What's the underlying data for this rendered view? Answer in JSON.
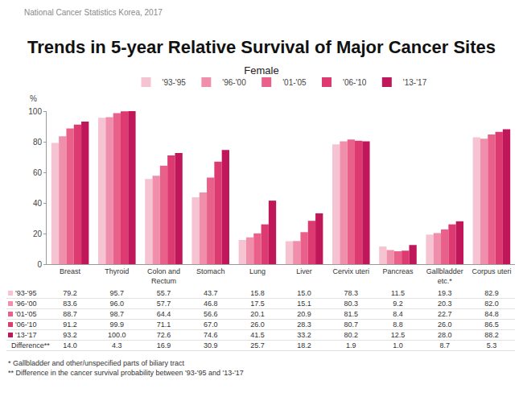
{
  "chart_data": {
    "type": "bar",
    "header": "National Cancer Statistics  Korea, 2017",
    "title": "Trends in 5-year Relative Survival of Major Cancer Sites",
    "subtitle": "Female",
    "y_label": "%",
    "categories": [
      "Breast",
      "Thyroid",
      "Colon and Rectum",
      "Stomach",
      "Lung",
      "Liver",
      "Cervix uteri",
      "Pancreas",
      "Gallbladder etc.*",
      "Corpus uteri"
    ],
    "series": [
      {
        "name": "'93-'95",
        "color": "#f6c3d2",
        "values": [
          79.2,
          95.7,
          55.7,
          43.7,
          15.8,
          15.0,
          78.3,
          11.5,
          19.3,
          82.9
        ],
        "value_labels": [
          "79.2",
          "95.7",
          "55.7",
          "43.7",
          "15.8",
          "15.0",
          "78.3",
          "11.5",
          "19.3",
          "82.9"
        ]
      },
      {
        "name": "'96-'00",
        "color": "#f08fac",
        "values": [
          83.6,
          96.0,
          57.7,
          46.8,
          17.5,
          15.1,
          80.3,
          9.2,
          20.3,
          82.0
        ],
        "value_labels": [
          "83.6",
          "96.0",
          "57.7",
          "46.8",
          "17.5",
          "15.1",
          "80.3",
          "9.2",
          "20.3",
          "82.0"
        ]
      },
      {
        "name": "'01-'05",
        "color": "#e9608a",
        "values": [
          88.7,
          98.7,
          64.4,
          56.6,
          20.1,
          20.9,
          81.5,
          8.4,
          22.7,
          84.8
        ],
        "value_labels": [
          "88.7",
          "98.7",
          "64.4",
          "56.6",
          "20.1",
          "20.9",
          "81.5",
          "8.4",
          "22.7",
          "84.8"
        ]
      },
      {
        "name": "'06-'10",
        "color": "#dc3a71",
        "values": [
          91.2,
          99.9,
          71.1,
          67.0,
          26.0,
          28.3,
          80.7,
          8.8,
          26.0,
          86.5
        ],
        "value_labels": [
          "91.2",
          "99.9",
          "71.1",
          "67.0",
          "26.0",
          "28.3",
          "80.7",
          "8.8",
          "26.0",
          "86.5"
        ]
      },
      {
        "name": "'13-'17",
        "color": "#bf1759",
        "values": [
          93.2,
          100.0,
          72.6,
          74.6,
          41.5,
          33.2,
          80.2,
          12.5,
          28.0,
          88.2
        ],
        "value_labels": [
          "93.2",
          "100.0",
          "72.6",
          "74.6",
          "41.5",
          "33.2",
          "80.2",
          "12.5",
          "28.0",
          "88.2"
        ]
      }
    ],
    "difference": {
      "label": "Difference**",
      "value_labels": [
        "14.0",
        "4.3",
        "16.9",
        "30.9",
        "25.7",
        "18.2",
        "1.9",
        "1.0",
        "8.7",
        "5.3"
      ]
    },
    "footnotes": [
      "* Gallbladder and other/unspecified parts of biliary tract",
      "** Difference in the cancer survival probability between '93-'95 and '13-'17"
    ],
    "ylim": [
      0,
      100
    ],
    "yticks": [
      0,
      20,
      40,
      60,
      80,
      100
    ],
    "grid": false,
    "legend": "top"
  }
}
